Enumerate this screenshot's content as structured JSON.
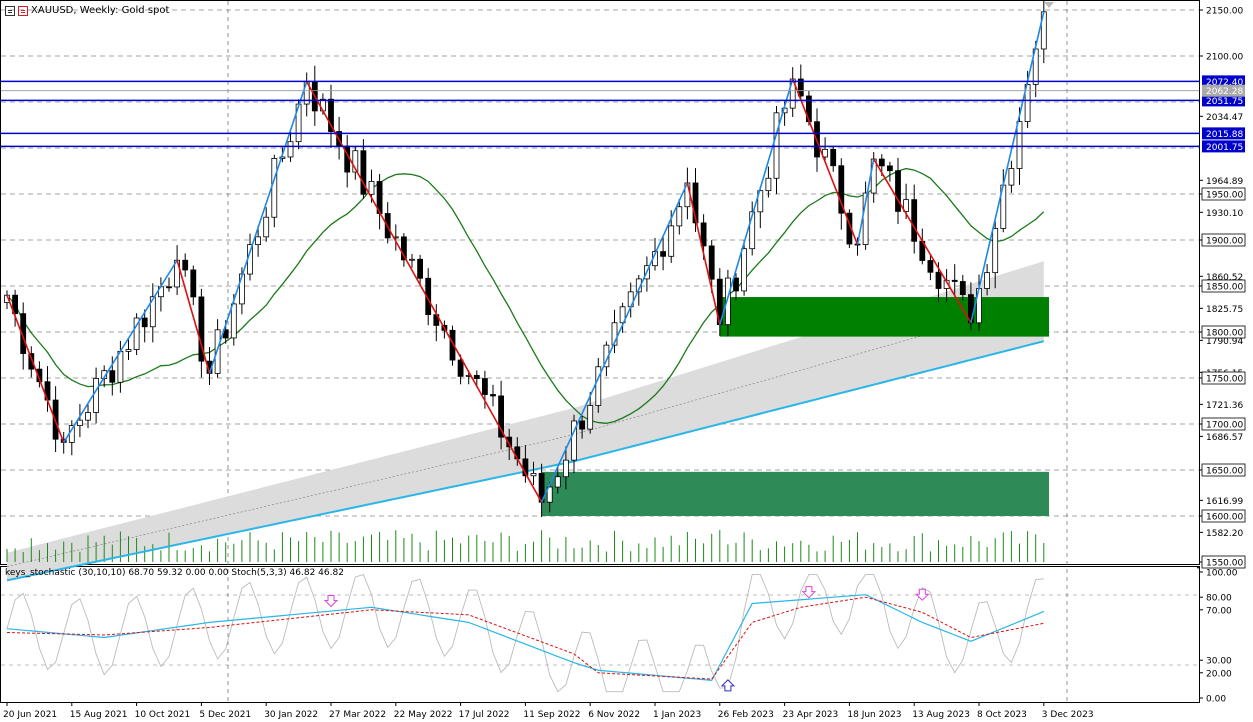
{
  "header": {
    "symbol": "XAUUSD",
    "timeframe": "Weekly",
    "description": "Gold spot",
    "title_text": "XAUUSD, Weekly:  Gold spot"
  },
  "indicator": {
    "label": "keys_stochastic (30,10,10) 68.70 59.32 0.00 0.00 Stoch(5,3,3) 46.82 46.82",
    "scale_labels": [
      "100.00",
      "80.00",
      "70.00",
      "30.00",
      "20.00",
      "0.00"
    ]
  },
  "price_axis": {
    "labels": [
      "2150.00",
      "2100.00",
      "2034.47",
      "1964.89",
      "1930.10",
      "1860.52",
      "1825.75",
      "1790.94",
      "1756.15",
      "1721.36",
      "1686.57",
      "1616.99",
      "1582.20",
      "1550.00"
    ],
    "boxed_labels": [
      "1950.00",
      "1900.00",
      "1850.00",
      "1800.00",
      "1750.00",
      "1700.00",
      "1650.00",
      "1600.00",
      "1550.00"
    ],
    "blue_levels": [
      "2072.40",
      "2051.75",
      "2015.88",
      "2001.75"
    ],
    "current_price": "2062.28"
  },
  "time_axis": {
    "labels": [
      "20 Jun 2021",
      "15 Aug 2021",
      "10 Oct 2021",
      "5 Dec 2021",
      "30 Jan 2022",
      "27 Mar 2022",
      "22 May 2022",
      "17 Jul 2022",
      "11 Sep 2022",
      "6 Nov 2022",
      "1 Jan 2023",
      "26 Feb 2023",
      "23 Apr 2023",
      "18 Jun 2023",
      "13 Aug 2023",
      "8 Oct 2023",
      "3 Dec 2023"
    ]
  },
  "colors": {
    "bull": "#1a8a1a",
    "bear": "#000000",
    "zigzag_up": "#1e88e5",
    "zigzag_down": "#dd1111",
    "level_line": "#0000cc",
    "ma_fast": "#1a7a1a",
    "ma_slow": "#29b6e8",
    "zone_upper": "#008000",
    "zone_lower": "#2e8b57",
    "band": "#dcdcdc"
  },
  "chart_data": {
    "type": "candlestick",
    "symbol": "XAUUSD",
    "timeframe": "Weekly",
    "x_range": [
      "20 Jun 2021",
      "10 Dec 2023"
    ],
    "ylim": [
      1550,
      2150
    ],
    "candle_count": 129,
    "turning_points": [
      {
        "date": "20 Jun 2021",
        "price": 1840
      },
      {
        "date": "8 Aug 2021",
        "price": 1680
      },
      {
        "date": "14 Nov 2021",
        "price": 1878
      },
      {
        "date": "12 Dec 2021",
        "price": 1755
      },
      {
        "date": "6 Mar 2022",
        "price": 2072
      },
      {
        "date": "25 Sep 2022",
        "price": 1615
      },
      {
        "date": "29 Jan 2023",
        "price": 1962
      },
      {
        "date": "26 Feb 2023",
        "price": 1808
      },
      {
        "date": "30 Apr 2023",
        "price": 2075
      },
      {
        "date": "25 Jun 2023",
        "price": 1895
      },
      {
        "date": "9 Jul 2023",
        "price": 1988
      },
      {
        "date": "1 Oct 2023",
        "price": 1810
      },
      {
        "date": "3 Dec 2023",
        "price": 2148
      },
      {
        "date": "10 Dec 2023",
        "price": 2062
      }
    ],
    "horizontal_levels": [
      2072.4,
      2051.75,
      2015.88,
      2001.75
    ],
    "zones": [
      {
        "from": 1795,
        "to": 1838,
        "start": "26 Feb 2023"
      },
      {
        "from": 1600,
        "to": 1648,
        "start": "25 Sep 2022"
      }
    ],
    "stochastic": {
      "main": 68.7,
      "signal": 59.32,
      "stoch_k": 46.82,
      "stoch_d": 46.82
    }
  }
}
